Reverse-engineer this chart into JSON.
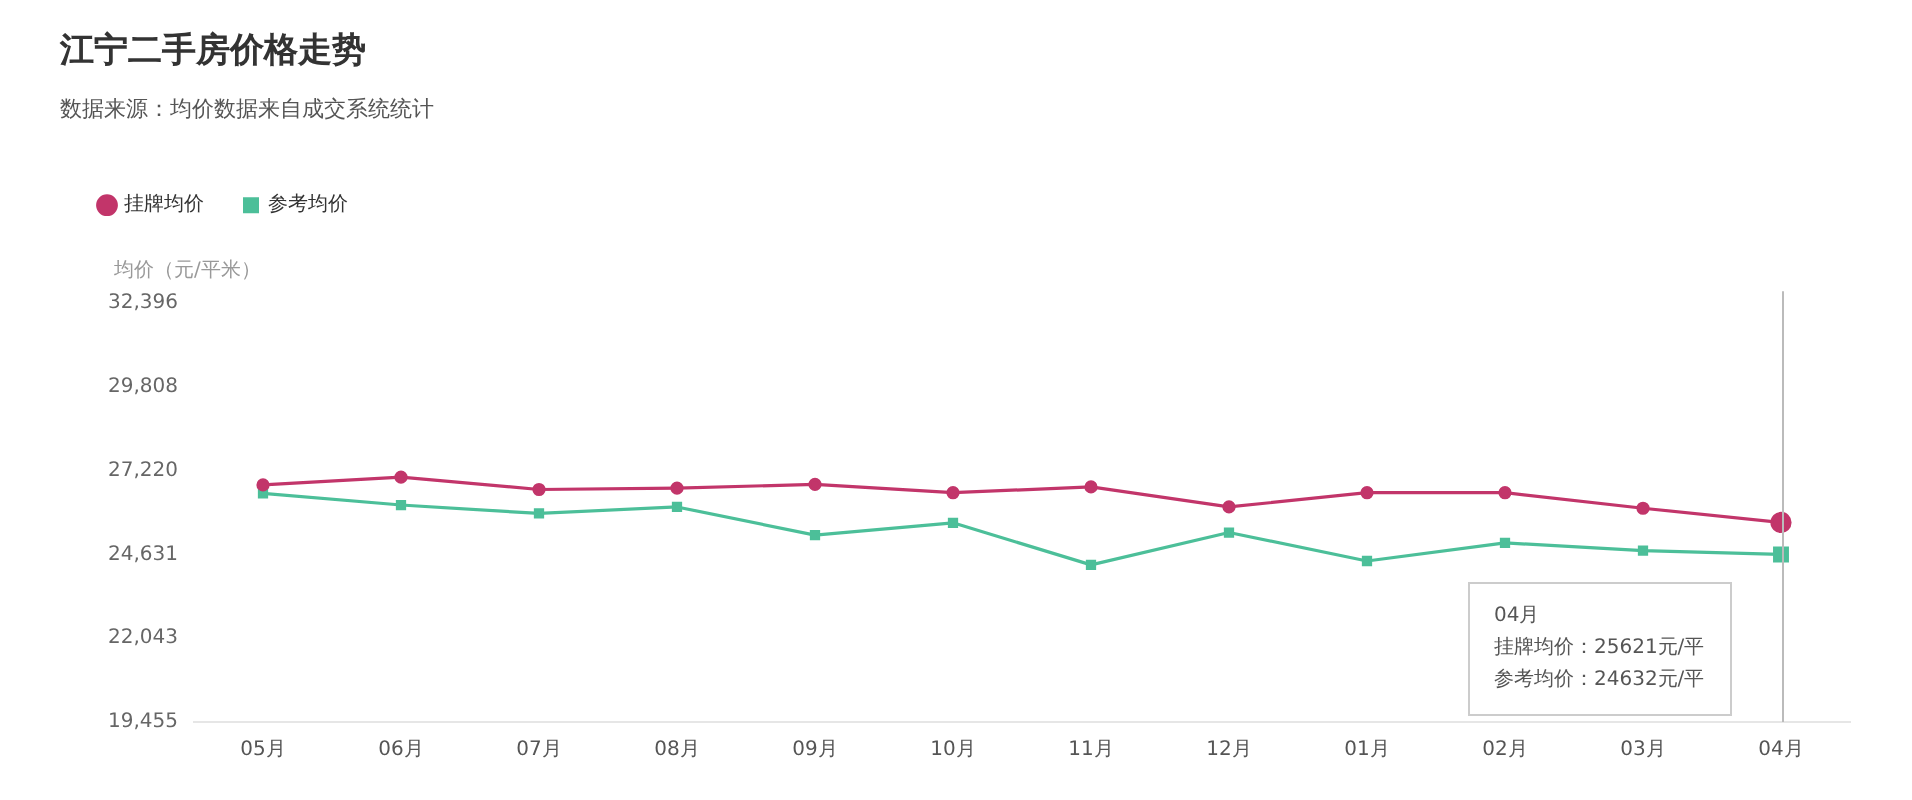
{
  "chart_data": {
    "type": "line",
    "title": "江宁二手房价格走势",
    "subtitle": "数据来源：均价数据来自成交系统统计",
    "ylabel": "均价（元/平米）",
    "categories": [
      "05月",
      "06月",
      "07月",
      "08月",
      "09月",
      "10月",
      "11月",
      "12月",
      "01月",
      "02月",
      "03月",
      "04月"
    ],
    "series": [
      {
        "name": "挂牌均价",
        "color": "#c2356a",
        "marker": "circle",
        "values": [
          26780,
          27020,
          26640,
          26680,
          26800,
          26540,
          26720,
          26100,
          26540,
          26540,
          26060,
          25621
        ]
      },
      {
        "name": "参考均价",
        "color": "#4cbf99",
        "marker": "square",
        "values": [
          26520,
          26160,
          25900,
          26100,
          25230,
          25610,
          24310,
          25310,
          24430,
          24990,
          24750,
          24632
        ]
      }
    ],
    "ylim": [
      19455,
      32396
    ],
    "yticks": [
      {
        "value": 19455,
        "label": "19,455"
      },
      {
        "value": 22043,
        "label": "22,043"
      },
      {
        "value": 24631,
        "label": "24,631"
      },
      {
        "value": 27220,
        "label": "27,220"
      },
      {
        "value": 29808,
        "label": "29,808"
      },
      {
        "value": 32396,
        "label": "32,396"
      }
    ],
    "grid": false,
    "legend": "top left",
    "ref_lines": [
      {
        "axis": "x",
        "value": "04月",
        "color": "#bbbbbb"
      }
    ],
    "annotations": [
      "04月",
      "挂牌均价：25621元/平",
      "参考均价：24632元/平"
    ]
  }
}
